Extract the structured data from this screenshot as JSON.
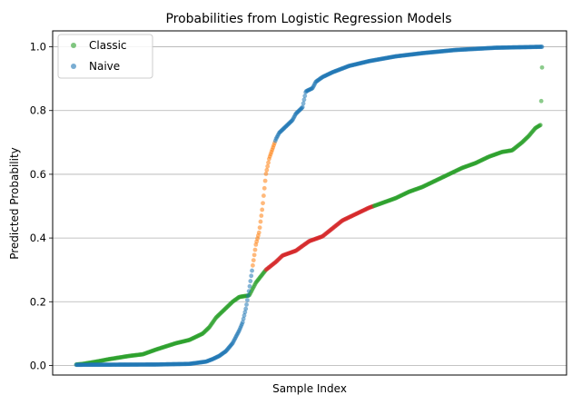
{
  "chart_data": {
    "type": "scatter",
    "title": "Probabilities from Logistic Regression Models",
    "xlabel": "Sample Index",
    "ylabel": "Predicted Probability",
    "ylim": [
      -0.03,
      1.05
    ],
    "yticks": [
      "0.0",
      "0.2",
      "0.4",
      "0.6",
      "0.8",
      "1.0"
    ],
    "ytick_values": [
      0.0,
      0.2,
      0.4,
      0.6,
      0.8,
      1.0
    ],
    "grid": "horizontal",
    "legend_position": "top-left",
    "n_samples": 600,
    "series": [
      {
        "name": "Classic",
        "color": "#2ca02c",
        "highlight_color": "#d62728",
        "highlight_range": [
          0.3,
          0.5
        ],
        "curve": [
          [
            0,
            0.003
          ],
          [
            10,
            0.005
          ],
          [
            30,
            0.012
          ],
          [
            50,
            0.02
          ],
          [
            80,
            0.03
          ],
          [
            100,
            0.035
          ],
          [
            120,
            0.05
          ],
          [
            150,
            0.07
          ],
          [
            170,
            0.08
          ],
          [
            190,
            0.1
          ],
          [
            200,
            0.12
          ],
          [
            210,
            0.15
          ],
          [
            220,
            0.17
          ],
          [
            235,
            0.2
          ],
          [
            245,
            0.215
          ],
          [
            260,
            0.22
          ],
          [
            270,
            0.26
          ],
          [
            285,
            0.3
          ],
          [
            300,
            0.325
          ],
          [
            310,
            0.345
          ],
          [
            330,
            0.36
          ],
          [
            350,
            0.39
          ],
          [
            370,
            0.405
          ],
          [
            385,
            0.43
          ],
          [
            400,
            0.455
          ],
          [
            420,
            0.475
          ],
          [
            440,
            0.495
          ],
          [
            460,
            0.51
          ],
          [
            480,
            0.525
          ],
          [
            500,
            0.545
          ],
          [
            520,
            0.56
          ],
          [
            540,
            0.58
          ],
          [
            560,
            0.6
          ],
          [
            580,
            0.62
          ],
          [
            600,
            0.635
          ],
          [
            620,
            0.655
          ],
          [
            640,
            0.67
          ],
          [
            655,
            0.675
          ],
          [
            670,
            0.7
          ],
          [
            680,
            0.72
          ],
          [
            690,
            0.745
          ],
          [
            698,
            0.755
          ],
          [
            700,
            0.935
          ]
        ]
      },
      {
        "name": "Naive",
        "color": "#1f77b4",
        "highlight_color": "#ff7f0e",
        "highlight_range": [
          0.3,
          0.7
        ],
        "curve": [
          [
            0,
            0.002
          ],
          [
            120,
            0.003
          ],
          [
            170,
            0.005
          ],
          [
            195,
            0.012
          ],
          [
            205,
            0.02
          ],
          [
            215,
            0.03
          ],
          [
            225,
            0.045
          ],
          [
            235,
            0.07
          ],
          [
            245,
            0.11
          ],
          [
            250,
            0.135
          ],
          [
            255,
            0.18
          ],
          [
            260,
            0.24
          ],
          [
            265,
            0.31
          ],
          [
            270,
            0.38
          ],
          [
            275,
            0.42
          ],
          [
            280,
            0.5
          ],
          [
            285,
            0.6
          ],
          [
            290,
            0.65
          ],
          [
            295,
            0.68
          ],
          [
            300,
            0.71
          ],
          [
            305,
            0.73
          ],
          [
            315,
            0.75
          ],
          [
            325,
            0.77
          ],
          [
            330,
            0.79
          ],
          [
            340,
            0.81
          ],
          [
            345,
            0.86
          ],
          [
            355,
            0.87
          ],
          [
            360,
            0.89
          ],
          [
            370,
            0.905
          ],
          [
            385,
            0.92
          ],
          [
            410,
            0.94
          ],
          [
            440,
            0.955
          ],
          [
            480,
            0.97
          ],
          [
            520,
            0.98
          ],
          [
            570,
            0.99
          ],
          [
            630,
            0.997
          ],
          [
            700,
            1.0
          ]
        ]
      }
    ]
  }
}
